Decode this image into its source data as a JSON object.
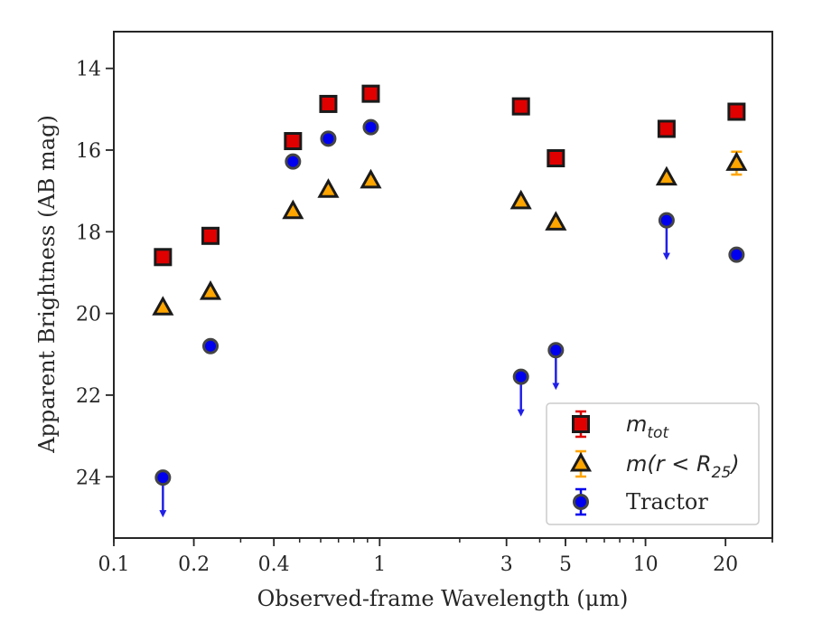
{
  "chart_data": {
    "type": "scatter",
    "title": "",
    "xlabel": "Observed-frame Wavelength (μm)",
    "ylabel": "Apparent Brightness (AB mag)",
    "xscale": "log",
    "xlim": [
      0.1,
      30
    ],
    "ylim": [
      25.5,
      13.1
    ],
    "y_inverted": true,
    "xticks": [
      0.1,
      0.2,
      0.4,
      1,
      3,
      5,
      10,
      20
    ],
    "xtick_labels": [
      "0.1",
      "0.2",
      "0.4",
      "1",
      "3",
      "5",
      "10",
      "20"
    ],
    "yticks": [
      14,
      16,
      18,
      20,
      22,
      24
    ],
    "ytick_labels": [
      "14",
      "16",
      "18",
      "20",
      "22",
      "24"
    ],
    "grid": false,
    "legend_position": "bottom-right",
    "legend": [
      {
        "series": "mtot",
        "math": "m",
        "sub": "tot"
      },
      {
        "series": "m25",
        "math": "m(r < R",
        "sub": "25",
        "close": ")"
      },
      {
        "series": "tractor",
        "text": "Tractor"
      }
    ],
    "series": [
      {
        "id": "mtot",
        "marker": "square",
        "color": "#e00000",
        "edge": "#1a1a1a",
        "x": [
          0.153,
          0.231,
          0.472,
          0.641,
          0.926,
          3.4,
          4.6,
          12.0,
          22.0
        ],
        "y": [
          18.62,
          18.1,
          15.78,
          14.87,
          14.62,
          14.93,
          16.2,
          15.48,
          15.06
        ],
        "err": [
          0.0,
          0.0,
          0.0,
          0.0,
          0.0,
          0.0,
          0.0,
          0.0,
          0.0
        ],
        "upper_limit": [
          false,
          false,
          false,
          false,
          false,
          false,
          false,
          false,
          false
        ]
      },
      {
        "id": "m25",
        "marker": "triangle",
        "color": "#ffa500",
        "edge": "#1a1a1a",
        "x": [
          0.153,
          0.231,
          0.472,
          0.641,
          0.926,
          3.4,
          4.6,
          12.0,
          22.0
        ],
        "y": [
          19.86,
          19.48,
          17.5,
          16.98,
          16.75,
          17.26,
          17.78,
          16.68,
          16.32
        ],
        "err": [
          0.0,
          0.0,
          0.0,
          0.0,
          0.0,
          0.0,
          0.0,
          0.0,
          0.28
        ],
        "upper_limit": [
          false,
          false,
          false,
          false,
          false,
          false,
          false,
          false,
          false
        ]
      },
      {
        "id": "tractor",
        "marker": "circle",
        "color": "#0000ee",
        "edge": "#444444",
        "x": [
          0.153,
          0.231,
          0.472,
          0.641,
          0.926,
          3.4,
          4.6,
          12.0,
          22.0
        ],
        "y": [
          24.02,
          20.8,
          16.28,
          15.72,
          15.44,
          21.55,
          20.9,
          17.72,
          18.56
        ],
        "err": [
          0.0,
          0.0,
          0.0,
          0.0,
          0.0,
          0.0,
          0.0,
          0.0,
          0.0
        ],
        "upper_limit": [
          true,
          false,
          false,
          false,
          false,
          true,
          true,
          true,
          false
        ]
      }
    ]
  }
}
